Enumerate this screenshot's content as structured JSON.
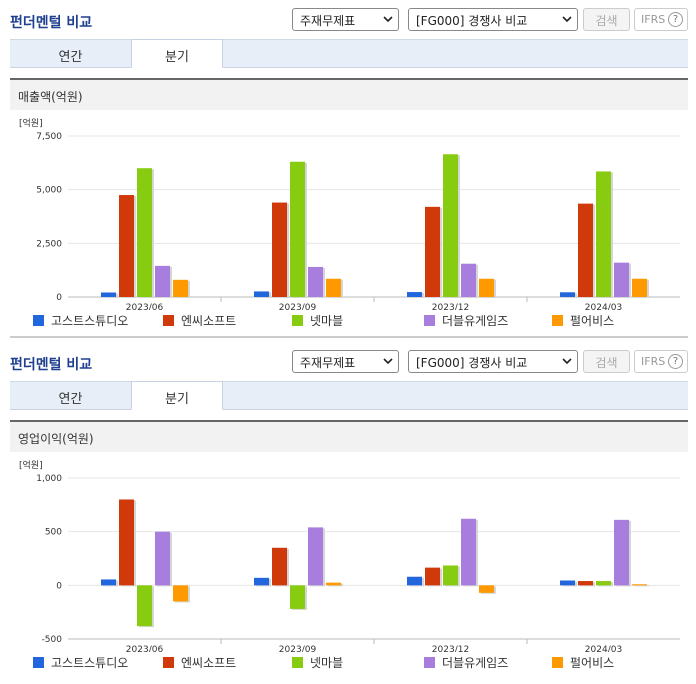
{
  "panels": [
    {
      "title": "펀더멘털 비교",
      "select1": "주재무제표",
      "select2": "[FG000] 경쟁사 비교",
      "search_label": "검색",
      "ifrs_label": "IFRS",
      "ifrs_help": "?",
      "tabs": [
        "연간",
        "분기"
      ],
      "active_tab": 1,
      "section_title": "매출액(억원)"
    },
    {
      "title": "펀더멘털 비교",
      "select1": "주재무제표",
      "select2": "[FG000] 경쟁사 비교",
      "search_label": "검색",
      "ifrs_label": "IFRS",
      "ifrs_help": "?",
      "tabs": [
        "연간",
        "분기"
      ],
      "active_tab": 1,
      "section_title": "영업이익(억원)"
    }
  ],
  "colors": [
    "#2266dd",
    "#d03a0a",
    "#88cc11",
    "#a77ddd",
    "#ff9900"
  ],
  "chart_data": [
    {
      "type": "bar",
      "unit_label": "[억원]",
      "categories": [
        "2023/06",
        "2023/09",
        "2023/12",
        "2024/03"
      ],
      "ylim": [
        0,
        7500
      ],
      "yticks": [
        0,
        2500,
        5000,
        7500
      ],
      "ytick_labels": [
        "0",
        "2,500",
        "5,000",
        "7,500"
      ],
      "series": [
        {
          "name": "고스트스튜디오",
          "values": [
            210,
            260,
            230,
            220
          ]
        },
        {
          "name": "엔씨소프트",
          "values": [
            4750,
            4400,
            4200,
            4350
          ]
        },
        {
          "name": "넷마블",
          "values": [
            6000,
            6300,
            6650,
            5850
          ]
        },
        {
          "name": "더블유게임즈",
          "values": [
            1450,
            1400,
            1550,
            1600
          ]
        },
        {
          "name": "펄어비스",
          "values": [
            800,
            850,
            850,
            850
          ]
        }
      ],
      "legend_position": "bottom"
    },
    {
      "type": "bar",
      "unit_label": "[억원]",
      "categories": [
        "2023/06",
        "2023/09",
        "2023/12",
        "2024/03"
      ],
      "ylim": [
        -500,
        1000
      ],
      "yticks": [
        -500,
        0,
        500,
        1000
      ],
      "ytick_labels": [
        "-500",
        "0",
        "500",
        "1,000"
      ],
      "series": [
        {
          "name": "고스트스튜디오",
          "values": [
            55,
            70,
            80,
            45
          ]
        },
        {
          "name": "엔씨소프트",
          "values": [
            800,
            350,
            165,
            40
          ]
        },
        {
          "name": "넷마블",
          "values": [
            -380,
            -220,
            185,
            40
          ]
        },
        {
          "name": "더블유게임즈",
          "values": [
            500,
            540,
            620,
            610
          ]
        },
        {
          "name": "펄어비스",
          "values": [
            -150,
            25,
            -70,
            10
          ]
        }
      ],
      "legend_position": "bottom"
    }
  ]
}
